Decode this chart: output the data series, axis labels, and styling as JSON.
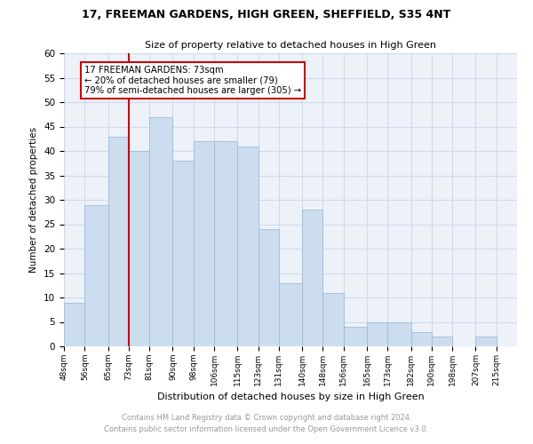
{
  "title1": "17, FREEMAN GARDENS, HIGH GREEN, SHEFFIELD, S35 4NT",
  "title2": "Size of property relative to detached houses in High Green",
  "xlabel": "Distribution of detached houses by size in High Green",
  "ylabel": "Number of detached properties",
  "bins": [
    48,
    56,
    65,
    73,
    81,
    90,
    98,
    106,
    115,
    123,
    131,
    140,
    148,
    156,
    165,
    173,
    182,
    190,
    198,
    207,
    215
  ],
  "bin_labels": [
    "48sqm",
    "56sqm",
    "65sqm",
    "73sqm",
    "81sqm",
    "90sqm",
    "98sqm",
    "106sqm",
    "115sqm",
    "123sqm",
    "131sqm",
    "140sqm",
    "148sqm",
    "156sqm",
    "165sqm",
    "173sqm",
    "182sqm",
    "190sqm",
    "198sqm",
    "207sqm",
    "215sqm"
  ],
  "counts": [
    9,
    29,
    43,
    40,
    47,
    38,
    42,
    42,
    41,
    24,
    13,
    28,
    11,
    4,
    5,
    5,
    3,
    2,
    0,
    2
  ],
  "bar_color": "#ccddf0",
  "bar_edge_color": "#9dbdd8",
  "vline_x": 73,
  "vline_color": "#cc0000",
  "annotation_line1": "17 FREEMAN GARDENS: 73sqm",
  "annotation_line2": "← 20% of detached houses are smaller (79)",
  "annotation_line3": "79% of semi-detached houses are larger (305) →",
  "annotation_box_color": "#ffffff",
  "annotation_box_edge": "#cc0000",
  "ylim": [
    0,
    60
  ],
  "yticks": [
    0,
    5,
    10,
    15,
    20,
    25,
    30,
    35,
    40,
    45,
    50,
    55,
    60
  ],
  "grid_color": "#d0daea",
  "background_color": "#edf2f9",
  "footer1": "Contains HM Land Registry data © Crown copyright and database right 2024.",
  "footer2": "Contains public sector information licensed under the Open Government Licence v3.0.",
  "footer_color": "#999999"
}
